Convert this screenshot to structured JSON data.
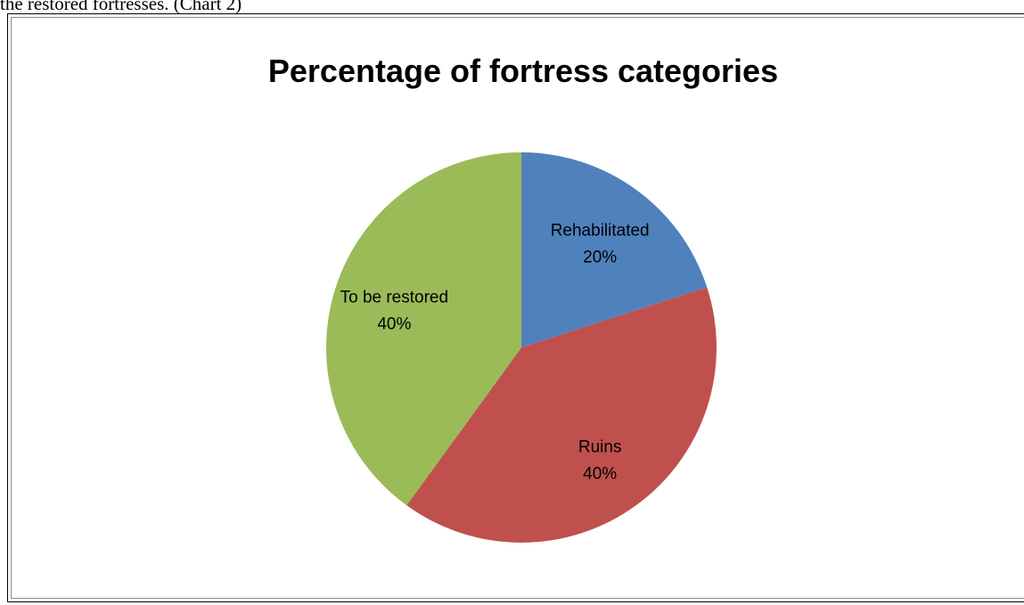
{
  "caption": "the restored fortresses. (Chart 2)",
  "chart_data": {
    "type": "pie",
    "title": "Percentage of fortress categories",
    "start_angle_deg": 0,
    "direction": "clockwise",
    "labels_show": "category-and-percent",
    "slices": [
      {
        "name": "Rehabilitated",
        "value": 20,
        "label": "20%",
        "color": "#4f81bd"
      },
      {
        "name": "Ruins",
        "value": 40,
        "label": "40%",
        "color": "#c0504d"
      },
      {
        "name": "To be restored",
        "value": 40,
        "label": "40%",
        "color": "#9bbb59"
      }
    ]
  }
}
